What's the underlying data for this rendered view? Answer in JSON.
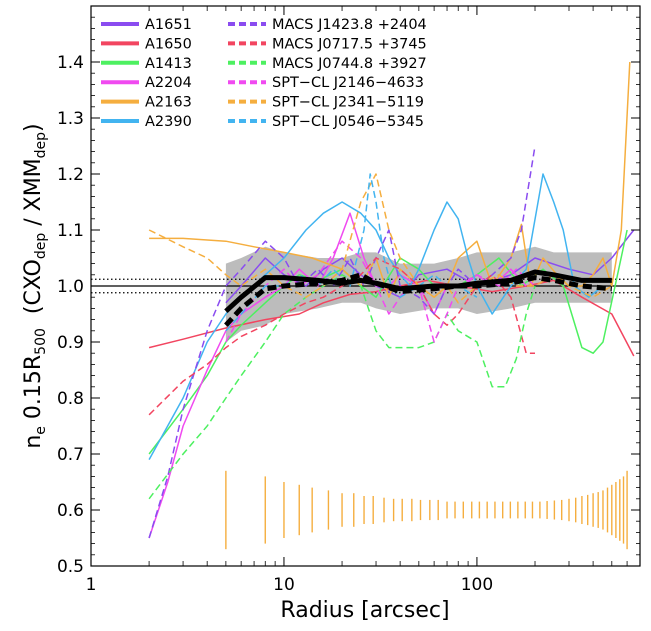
{
  "chart_data": {
    "type": "line",
    "xscale": "log",
    "xlim": [
      1,
      700
    ],
    "ylim": [
      0.5,
      1.5
    ],
    "xlabel": "Radius   [arcsec]",
    "ylabel": {
      "main": "n",
      "sub": "e",
      "rest": " 0.15R",
      "sub2": "500",
      "paren_open": "  (CXO",
      "sub3": "dep",
      "slash": " / XMM",
      "sub4": "dep",
      "paren_close": ")"
    },
    "xticks": [
      {
        "value": 1,
        "label": "1"
      },
      {
        "value": 10,
        "label": "10"
      },
      {
        "value": 100,
        "label": "100"
      }
    ],
    "yticks": [
      {
        "value": 0.5,
        "label": "0.5"
      },
      {
        "value": 0.6,
        "label": "0.6"
      },
      {
        "value": 0.7,
        "label": "0.7"
      },
      {
        "value": 0.8,
        "label": "0.8"
      },
      {
        "value": 0.9,
        "label": "0.9"
      },
      {
        "value": 1.0,
        "label": "1.0"
      },
      {
        "value": 1.1,
        "label": "1.1"
      },
      {
        "value": 1.2,
        "label": "1.2"
      },
      {
        "value": 1.3,
        "label": "1.3"
      },
      {
        "value": 1.4,
        "label": "1.4"
      }
    ],
    "reference_lines": {
      "solid": 1.0,
      "dotted": [
        0.988,
        1.012
      ]
    },
    "legend_position": "top-left",
    "series": [
      {
        "name": "A1651",
        "color": "#8a4cf0",
        "dash": "solid",
        "x": [
          5,
          6,
          8,
          10,
          13,
          16,
          20,
          25,
          30,
          40,
          50,
          70,
          100,
          150,
          200,
          300,
          400,
          500,
          650
        ],
        "y": [
          0.97,
          1.0,
          1.05,
          1.02,
          1.0,
          1.03,
          1.05,
          1.02,
          1.0,
          0.98,
          1.02,
          1.03,
          1.0,
          1.02,
          1.05,
          1.03,
          1.02,
          1.05,
          1.1
        ]
      },
      {
        "name": "A1650",
        "color": "#f24560",
        "dash": "solid",
        "x": [
          2,
          3,
          5,
          8,
          12,
          16,
          22,
          30,
          40,
          55,
          80,
          120,
          180,
          250,
          350,
          500,
          650
        ],
        "y": [
          0.89,
          0.905,
          0.925,
          0.94,
          0.95,
          0.97,
          0.985,
          0.99,
          1.0,
          1.01,
          1.0,
          0.99,
          1.0,
          1.01,
          0.98,
          0.95,
          0.875
        ]
      },
      {
        "name": "A1413",
        "color": "#4df060",
        "dash": "solid",
        "x": [
          2,
          3,
          4,
          5,
          6,
          8,
          10,
          12,
          15,
          20,
          25,
          30,
          40,
          50,
          60,
          80,
          100,
          130,
          170,
          220,
          280,
          350,
          400,
          450,
          520,
          600
        ],
        "y": [
          0.7,
          0.78,
          0.84,
          0.9,
          0.93,
          0.97,
          1.0,
          1.02,
          1.01,
          1.03,
          1.0,
          0.98,
          1.05,
          1.03,
          1.0,
          1.0,
          1.02,
          1.05,
          1.0,
          1.03,
          1.0,
          0.89,
          0.88,
          0.9,
          1.0,
          1.1
        ]
      },
      {
        "name": "A2204",
        "color": "#f04af0",
        "dash": "solid",
        "x": [
          2,
          2.5,
          3,
          4,
          5,
          6,
          8,
          10,
          12,
          15,
          18,
          22,
          26,
          30,
          35,
          40,
          50,
          60,
          70,
          85,
          100,
          120,
          150,
          180
        ],
        "y": [
          0.55,
          0.65,
          0.75,
          0.85,
          0.92,
          0.95,
          0.98,
          1.0,
          1.03,
          1.0,
          1.05,
          1.13,
          1.05,
          1.0,
          1.0,
          1.02,
          1.0,
          0.95,
          1.0,
          1.0,
          1.02,
          1.0,
          1.03,
          1.0
        ]
      },
      {
        "name": "A2163",
        "color": "#f5ae3f",
        "dash": "solid",
        "x": [
          2,
          3,
          5,
          7,
          10,
          14,
          20,
          25,
          30,
          35,
          40,
          50,
          60,
          70,
          80,
          100,
          120,
          150,
          170,
          190,
          220,
          260,
          300,
          350,
          400,
          450,
          500,
          560,
          620
        ],
        "y": [
          1.085,
          1.085,
          1.08,
          1.07,
          1.06,
          1.05,
          1.03,
          1.0,
          1.05,
          0.98,
          1.03,
          1.0,
          0.98,
          1.0,
          1.05,
          1.08,
          1.0,
          1.05,
          1.11,
          1.0,
          1.05,
          1.02,
          1.0,
          1.0,
          1.02,
          1.05,
          1.0,
          1.1,
          1.4
        ]
      },
      {
        "name": "A2390",
        "color": "#42b4f0",
        "dash": "solid",
        "x": [
          2,
          3,
          4,
          5,
          6,
          8,
          10,
          13,
          16,
          20,
          25,
          30,
          35,
          40,
          45,
          50,
          60,
          70,
          80,
          90,
          100,
          120,
          150,
          180,
          220,
          250,
          280,
          320,
          380,
          450
        ],
        "y": [
          0.69,
          0.8,
          0.9,
          0.95,
          0.98,
          1.02,
          1.05,
          1.1,
          1.13,
          1.15,
          1.13,
          1.1,
          1.05,
          1.02,
          1.0,
          1.03,
          1.1,
          1.15,
          1.12,
          1.05,
          1.0,
          0.95,
          1.0,
          1.03,
          1.2,
          1.15,
          1.1,
          1.0,
          0.98,
          1.0
        ]
      },
      {
        "name": "MACS J1423.8 +2404",
        "color": "#8a4cf0",
        "dash": "dashed",
        "x": [
          2,
          2.5,
          3,
          4,
          5,
          6,
          8,
          10,
          12,
          15,
          18,
          22,
          26,
          30,
          35,
          40,
          50,
          60,
          70,
          80,
          100,
          120,
          150,
          170,
          200
        ],
        "y": [
          0.55,
          0.66,
          0.78,
          0.92,
          1.0,
          1.03,
          1.08,
          1.05,
          1.0,
          1.03,
          1.0,
          1.05,
          1.0,
          1.05,
          1.1,
          1.0,
          0.98,
          0.95,
          1.0,
          1.03,
          1.0,
          1.02,
          1.05,
          1.1,
          1.25
        ]
      },
      {
        "name": "MACS J0717.5 +3745",
        "color": "#f24560",
        "dash": "dashed",
        "x": [
          2,
          3,
          4,
          5,
          6,
          8,
          10,
          13,
          16,
          20,
          25,
          30,
          40,
          50,
          60,
          70,
          80,
          100,
          120,
          150,
          180,
          200
        ],
        "y": [
          0.77,
          0.83,
          0.86,
          0.89,
          0.91,
          0.93,
          0.95,
          0.97,
          0.98,
          1.0,
          1.02,
          1.05,
          1.03,
          1.0,
          0.95,
          0.93,
          0.95,
          1.0,
          1.02,
          0.98,
          0.88,
          0.88
        ]
      },
      {
        "name": "MACS J0744.8 +3927",
        "color": "#4df060",
        "dash": "dashed",
        "x": [
          2,
          3,
          4,
          5,
          6,
          8,
          10,
          13,
          16,
          20,
          25,
          30,
          35,
          40,
          50,
          60,
          70,
          80,
          100,
          120,
          140,
          160,
          180,
          200
        ],
        "y": [
          0.62,
          0.7,
          0.75,
          0.8,
          0.84,
          0.9,
          0.95,
          0.98,
          1.0,
          1.02,
          1.0,
          0.92,
          0.89,
          0.89,
          0.89,
          0.9,
          0.95,
          0.92,
          0.9,
          0.82,
          0.82,
          0.87,
          0.95,
          1.0
        ]
      },
      {
        "name": "SPT−CL J2146−4633",
        "color": "#f04af0",
        "dash": "dashed",
        "x": [
          5,
          6,
          8,
          10,
          12,
          15,
          20,
          25,
          30,
          35,
          40,
          45,
          50,
          60,
          70,
          80,
          100,
          130,
          160,
          200
        ],
        "y": [
          0.9,
          0.95,
          1.0,
          1.03,
          1.0,
          1.02,
          1.08,
          1.05,
          1.0,
          0.95,
          0.98,
          1.0,
          1.0,
          0.9,
          0.95,
          1.0,
          1.02,
          1.0,
          1.03,
          1.0
        ]
      },
      {
        "name": "SPT−CL J2341−5119",
        "color": "#f5ae3f",
        "dash": "dashed",
        "x": [
          2,
          3,
          4,
          5,
          6,
          8,
          10,
          13,
          16,
          20,
          25,
          30,
          35,
          40,
          50,
          60,
          70,
          80,
          100,
          130,
          160,
          200,
          250,
          300,
          400,
          500
        ],
        "y": [
          1.1,
          1.07,
          1.05,
          1.02,
          1.0,
          1.03,
          1.0,
          0.98,
          1.0,
          1.03,
          1.15,
          1.2,
          1.1,
          1.05,
          1.0,
          0.98,
          1.0,
          0.97,
          1.0,
          1.02,
          1.0,
          1.0,
          1.02,
          1.0,
          0.98,
          1.0
        ]
      },
      {
        "name": "SPT−CL J0546−5345",
        "color": "#42b4f0",
        "dash": "dashed",
        "x": [
          5,
          6,
          8,
          10,
          12,
          15,
          18,
          22,
          26,
          28,
          30,
          33,
          36,
          40,
          50,
          60,
          70,
          80,
          100
        ],
        "y": [
          0.92,
          0.95,
          1.0,
          1.0,
          1.02,
          1.0,
          1.03,
          1.0,
          1.1,
          1.2,
          1.15,
          1.05,
          1.0,
          0.98,
          1.0,
          1.02,
          1.0,
          1.0,
          0.98
        ]
      },
      {
        "name": "",
        "color": "#000000",
        "dash": "thick-solid",
        "x": [
          5,
          6,
          8,
          10,
          15,
          20,
          25,
          30,
          40,
          60,
          80,
          100,
          150,
          200,
          250,
          350,
          500
        ],
        "y": [
          0.955,
          0.98,
          1.015,
          1.015,
          1.01,
          1.005,
          1.01,
          1.005,
          0.995,
          1.0,
          1.0,
          1.005,
          1.01,
          1.025,
          1.02,
          1.01,
          1.01
        ]
      },
      {
        "name": "",
        "color": "#000000",
        "dash": "thick-dashed",
        "x": [
          5,
          6,
          8,
          10,
          15,
          20,
          25,
          30,
          40,
          60,
          80,
          100,
          150,
          200,
          250,
          350,
          500
        ],
        "y": [
          0.93,
          0.96,
          0.995,
          1.0,
          1.005,
          1.01,
          1.02,
          1.005,
          0.99,
          0.995,
          1.0,
          1.0,
          1.005,
          1.015,
          1.01,
          1.0,
          0.995
        ]
      }
    ],
    "scatter_band": {
      "color": "#b8b8b8",
      "x": [
        5,
        6,
        8,
        10,
        15,
        20,
        25,
        30,
        40,
        60,
        80,
        100,
        150,
        200,
        250,
        350,
        500
      ],
      "upper": [
        1.04,
        1.05,
        1.07,
        1.06,
        1.05,
        1.05,
        1.06,
        1.06,
        1.04,
        1.04,
        1.05,
        1.06,
        1.06,
        1.07,
        1.06,
        1.06,
        1.06
      ],
      "lower": [
        0.9,
        0.92,
        0.93,
        0.95,
        0.96,
        0.97,
        0.97,
        0.96,
        0.95,
        0.96,
        0.96,
        0.95,
        0.96,
        0.97,
        0.97,
        0.97,
        0.97
      ]
    },
    "error_bars": {
      "color": "#f5ae3f",
      "center": 0.6,
      "x": [
        5,
        8,
        10,
        12,
        14,
        17,
        20,
        23,
        26,
        29,
        33,
        37,
        41,
        46,
        51,
        57,
        63,
        70,
        77,
        85,
        94,
        103,
        113,
        124,
        136,
        149,
        163,
        178,
        194,
        212,
        231,
        252,
        275,
        300,
        325,
        350,
        375,
        400,
        425,
        450,
        475,
        500,
        525,
        550,
        575,
        600
      ],
      "half_height": [
        0.07,
        0.06,
        0.05,
        0.045,
        0.04,
        0.035,
        0.03,
        0.03,
        0.025,
        0.025,
        0.022,
        0.02,
        0.02,
        0.02,
        0.018,
        0.018,
        0.018,
        0.015,
        0.015,
        0.015,
        0.015,
        0.015,
        0.015,
        0.015,
        0.015,
        0.015,
        0.015,
        0.015,
        0.015,
        0.015,
        0.016,
        0.017,
        0.018,
        0.02,
        0.022,
        0.025,
        0.027,
        0.03,
        0.032,
        0.035,
        0.04,
        0.045,
        0.05,
        0.055,
        0.06,
        0.07
      ]
    }
  }
}
